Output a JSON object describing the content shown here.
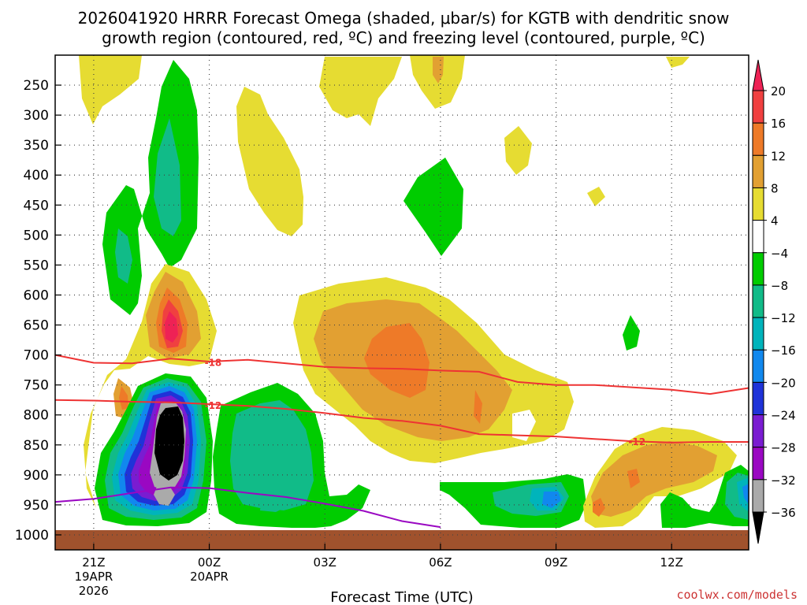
{
  "chart_data": {
    "type": "heatmap",
    "title_line1": "2026041920 HRRR Forecast Omega (shaded, μbar/s) for KGTB with dendritic snow",
    "title_line2": "growth region (contoured, red, ºC) and freezing level (contoured, purple, ºC)",
    "xlabel": "Forecast Time (UTC)",
    "credit": "coolwx.com/models",
    "x_ticks": [
      {
        "hour": 0,
        "label": "21Z",
        "sub1": "19APR",
        "sub2": "2026"
      },
      {
        "hour": 3,
        "label": "00Z",
        "sub1": "20APR",
        "sub2": ""
      },
      {
        "hour": 6,
        "label": "03Z",
        "sub1": "",
        "sub2": ""
      },
      {
        "hour": 9,
        "label": "06Z",
        "sub1": "",
        "sub2": ""
      },
      {
        "hour": 12,
        "label": "09Z",
        "sub1": "",
        "sub2": ""
      },
      {
        "hour": 15,
        "label": "12Z",
        "sub1": "",
        "sub2": ""
      }
    ],
    "x_range_hours": [
      -1,
      17
    ],
    "y_ticks": [
      {
        "p": 250,
        "label": "250"
      },
      {
        "p": 300,
        "label": "300"
      },
      {
        "p": 350,
        "label": "350"
      },
      {
        "p": 400,
        "label": "400"
      },
      {
        "p": 450,
        "label": "450"
      },
      {
        "p": 500,
        "label": "500"
      },
      {
        "p": 550,
        "label": "550"
      },
      {
        "p": 600,
        "label": "600"
      },
      {
        "p": 650,
        "label": "650"
      },
      {
        "p": 700,
        "label": "700"
      },
      {
        "p": 750,
        "label": "750"
      },
      {
        "p": 800,
        "label": "800"
      },
      {
        "p": 850,
        "label": "850"
      },
      {
        "p": 900,
        "label": "900"
      },
      {
        "p": 950,
        "label": "950"
      },
      {
        "p": 1000,
        "label": "1000"
      }
    ],
    "y_range_hpa": [
      200,
      1025
    ],
    "colorbar": {
      "labels": [
        "20",
        "16",
        "12",
        "8",
        "4",
        "−4",
        "−8",
        "−12",
        "−16",
        "−20",
        "−24",
        "−28",
        "−32",
        "−36"
      ],
      "colors": [
        "#ee2255",
        "#f04040",
        "#ee7a28",
        "#e2a032",
        "#e6dc32",
        "#ffffff",
        "#00cc00",
        "#11bb88",
        "#00b4bb",
        "#1188ee",
        "#1f33d8",
        "#7a1cd1",
        "#9a08c2",
        "#aaaaaa",
        "#000000"
      ]
    },
    "contours": [
      {
        "name": "dgz-top",
        "label": "-18",
        "color": "#ee3333",
        "points": [
          [
            -1,
            700
          ],
          [
            0,
            713
          ],
          [
            1,
            714
          ],
          [
            2,
            706
          ],
          [
            3,
            711
          ],
          [
            4,
            708
          ],
          [
            5,
            714
          ],
          [
            6,
            720
          ],
          [
            7,
            722
          ],
          [
            8,
            723
          ],
          [
            9,
            726
          ],
          [
            10,
            728
          ],
          [
            11,
            745
          ],
          [
            12,
            750
          ],
          [
            13,
            750
          ],
          [
            14,
            754
          ],
          [
            15,
            758
          ],
          [
            16,
            765
          ],
          [
            17,
            755
          ]
        ]
      },
      {
        "name": "dgz-bottom",
        "label": "-12",
        "color": "#ee3333",
        "points": [
          [
            -1,
            775
          ],
          [
            0,
            776
          ],
          [
            1,
            778
          ],
          [
            2,
            779
          ],
          [
            3,
            782
          ],
          [
            4,
            785
          ],
          [
            5,
            790
          ],
          [
            6,
            797
          ],
          [
            7,
            805
          ],
          [
            8,
            810
          ],
          [
            9,
            818
          ],
          [
            10,
            832
          ],
          [
            11,
            834
          ],
          [
            12,
            836
          ],
          [
            13,
            840
          ],
          [
            14,
            844
          ],
          [
            15,
            846
          ],
          [
            16,
            845
          ],
          [
            17,
            845
          ]
        ]
      },
      {
        "name": "freezing-level",
        "label": "0",
        "color": "#9a08c2",
        "points": [
          [
            -1,
            945
          ],
          [
            0,
            940
          ],
          [
            1,
            930
          ],
          [
            2,
            921
          ],
          [
            3,
            922
          ],
          [
            4,
            930
          ],
          [
            5,
            937
          ],
          [
            6,
            948
          ],
          [
            7,
            960
          ],
          [
            8,
            977
          ],
          [
            9,
            987
          ]
        ]
      }
    ],
    "contour_labels": [
      {
        "hour": 3.1,
        "p": 712,
        "text": "-18"
      },
      {
        "hour": 3.1,
        "p": 783,
        "text": "-12"
      },
      {
        "hour": 14.1,
        "p": 844,
        "text": "-12"
      }
    ]
  }
}
